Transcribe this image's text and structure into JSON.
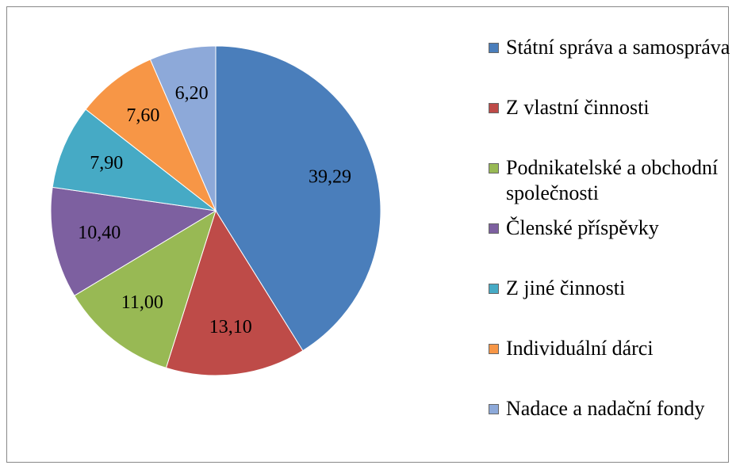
{
  "chart_data": {
    "type": "pie",
    "categories": [
      "Státní správa a samospráva",
      "Z vlastní činnosti",
      "Podnikatelské a obchodní společnosti",
      "Členské příspěvky",
      "Z jiné činnosti",
      "Individuální dárci",
      "Nadace a nadační fondy"
    ],
    "values": [
      39.29,
      13.1,
      11.0,
      10.4,
      7.9,
      7.6,
      6.2
    ],
    "value_labels": [
      "39,29",
      "13,10",
      "11,00",
      "10,40",
      "7,90",
      "7,60",
      "6,20"
    ],
    "colors": [
      "#4a7ebb",
      "#be4b48",
      "#98b954",
      "#7d60a0",
      "#46aac5",
      "#f79646",
      "#8da9d9"
    ],
    "legend": "right"
  }
}
